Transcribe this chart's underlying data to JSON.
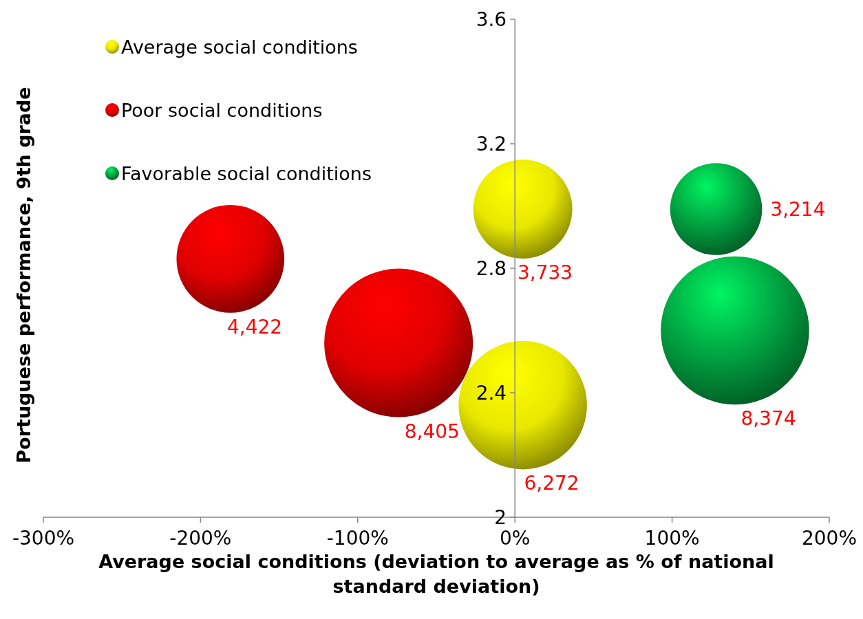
{
  "chart_data": {
    "type": "bubble",
    "xlabel": "Average social conditions (deviation to average as % of national standard deviation)",
    "ylabel": "Portuguese performance, 9th grade",
    "xlim": [
      -300,
      200
    ],
    "xticks": [
      {
        "value": -300,
        "label": "-300%"
      },
      {
        "value": -200,
        "label": "-200%"
      },
      {
        "value": -100,
        "label": "-100%"
      },
      {
        "value": 0,
        "label": "0%"
      },
      {
        "value": 100,
        "label": "100%"
      },
      {
        "value": 200,
        "label": "200%"
      }
    ],
    "ylim": [
      2,
      3.6
    ],
    "yticks": [
      2,
      2.4,
      2.8,
      3.2,
      3.6
    ],
    "grid": false,
    "legend": "top left",
    "series": [
      {
        "name": "Average social conditions",
        "color": "#e8e800",
        "x": [
          5,
          5
        ],
        "values": [
          2.99,
          2.36
        ],
        "sizes": [
          3733,
          6272
        ],
        "value_labels": [
          "3,733",
          "6,272"
        ]
      },
      {
        "name": "Poor social conditions",
        "color": "#e00000",
        "x": [
          -181,
          -74
        ],
        "values": [
          2.83,
          2.56
        ],
        "sizes": [
          4422,
          8405
        ],
        "value_labels": [
          "4,422",
          "8,405"
        ]
      },
      {
        "name": "Favorable social conditions",
        "color": "#00a040",
        "x": [
          128,
          140
        ],
        "values": [
          2.99,
          2.6
        ],
        "sizes": [
          3214,
          8374
        ],
        "value_labels": [
          "3,214",
          "8,374"
        ]
      }
    ]
  }
}
